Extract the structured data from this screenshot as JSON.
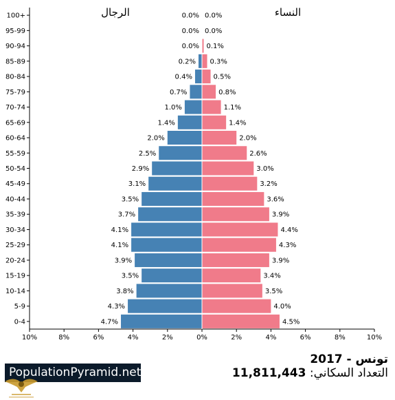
{
  "chart_data": {
    "type": "bar",
    "orientation": "horizontal-pyramid",
    "categories": [
      "100+",
      "95-99",
      "90-94",
      "85-89",
      "80-84",
      "75-79",
      "70-74",
      "65-69",
      "60-64",
      "55-59",
      "50-54",
      "45-49",
      "40-44",
      "35-39",
      "30-34",
      "25-29",
      "20-24",
      "15-19",
      "10-14",
      "5-9",
      "0-4"
    ],
    "series": [
      {
        "name": "الرجال",
        "color": "#4682b4",
        "values": [
          0.0,
          0.0,
          0.0,
          0.2,
          0.4,
          0.7,
          1.0,
          1.4,
          2.0,
          2.5,
          2.9,
          3.1,
          3.5,
          3.7,
          4.1,
          4.1,
          3.9,
          3.5,
          3.8,
          4.3,
          4.7
        ],
        "labels": [
          "0.0%",
          "0.0%",
          "0.0%",
          "0.2%",
          "0.4%",
          "0.7%",
          "1.0%",
          "1.4%",
          "2.0%",
          "2.5%",
          "2.9%",
          "3.1%",
          "3.5%",
          "3.7%",
          "4.1%",
          "4.1%",
          "3.9%",
          "3.5%",
          "3.8%",
          "4.3%",
          "4.7%"
        ]
      },
      {
        "name": "النساء",
        "color": "#f07b8a",
        "values": [
          0.0,
          0.0,
          0.1,
          0.3,
          0.5,
          0.8,
          1.1,
          1.4,
          2.0,
          2.6,
          3.0,
          3.2,
          3.6,
          3.9,
          4.4,
          4.3,
          3.9,
          3.4,
          3.5,
          4.0,
          4.5
        ],
        "labels": [
          "0.0%",
          "0.0%",
          "0.1%",
          "0.3%",
          "0.5%",
          "0.8%",
          "1.1%",
          "1.4%",
          "2.0%",
          "2.6%",
          "3.0%",
          "3.2%",
          "3.6%",
          "3.9%",
          "4.4%",
          "4.3%",
          "3.9%",
          "3.4%",
          "3.5%",
          "4.0%",
          "4.5%"
        ]
      }
    ],
    "xlim": [
      -10,
      10
    ],
    "xticks": [
      "10%",
      "8%",
      "6%",
      "4%",
      "2%",
      "0%",
      "2%",
      "4%",
      "6%",
      "8%",
      "10%"
    ],
    "grid": false
  },
  "footer": {
    "brand": "PopulationPyramid.net",
    "title": "تونس - 2017",
    "population_label": "التعداد السكاني:",
    "population_value": "11,811,443"
  }
}
